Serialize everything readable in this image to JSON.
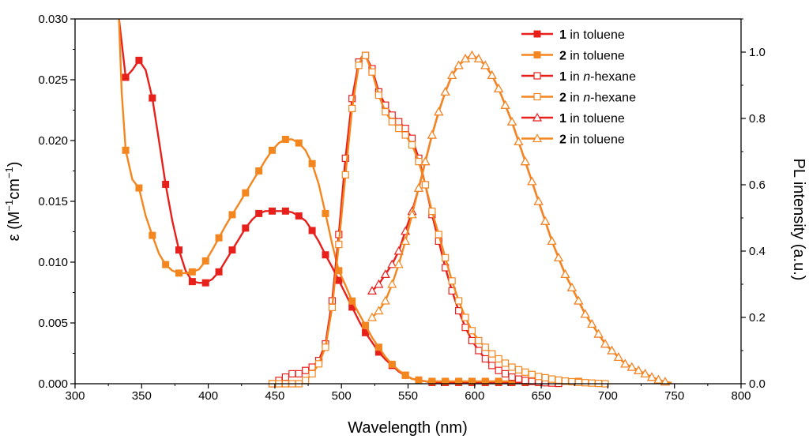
{
  "chart_data": {
    "type": "line",
    "title": "",
    "xlabel": "Wavelength (nm)",
    "ylabel_parts": [
      "ε (M",
      "−1",
      "cm",
      "−1",
      ")"
    ],
    "y2label": "PL intensity (a.u.)",
    "xlim": [
      300,
      800
    ],
    "ylim": [
      0,
      0.03
    ],
    "y2lim": [
      0,
      1.1
    ],
    "xticks": [
      "300",
      "350",
      "400",
      "450",
      "500",
      "550",
      "600",
      "650",
      "700",
      "750",
      "800"
    ],
    "yticks": [
      "0.000",
      "0.005",
      "0.010",
      "0.015",
      "0.020",
      "0.025",
      "0.030"
    ],
    "y2ticks": [
      "0.0",
      "0.2",
      "0.4",
      "0.6",
      "0.8",
      "1.0"
    ],
    "legend_position": "top-right",
    "series": [
      {
        "name": "1 in toluene",
        "label_num": "1",
        "label_pre": " in ",
        "label_solvent": "toluene",
        "solvent_italic": false,
        "axis": "left",
        "color": "#e8201c",
        "marker": "square-filled",
        "x": [
          333,
          338,
          343,
          348,
          353,
          358,
          363,
          368,
          373,
          378,
          383,
          388,
          393,
          398,
          403,
          408,
          413,
          418,
          423,
          428,
          433,
          438,
          443,
          448,
          453,
          458,
          463,
          468,
          473,
          478,
          483,
          488,
          493,
          498,
          503,
          508,
          513,
          518,
          523,
          528,
          533,
          538,
          543,
          548,
          553,
          558,
          563,
          568,
          573,
          578,
          583,
          588,
          593,
          598,
          603,
          608,
          613,
          618,
          623,
          628,
          633,
          638,
          643,
          648,
          653,
          658,
          663,
          668
        ],
        "y": [
          0.03,
          0.0252,
          0.0258,
          0.0266,
          0.0258,
          0.0235,
          0.02,
          0.0164,
          0.0134,
          0.011,
          0.0093,
          0.0084,
          0.0083,
          0.0083,
          0.0086,
          0.0092,
          0.0101,
          0.011,
          0.0119,
          0.0128,
          0.0135,
          0.014,
          0.0142,
          0.0142,
          0.0142,
          0.0142,
          0.0141,
          0.0138,
          0.0134,
          0.0126,
          0.0117,
          0.0106,
          0.0096,
          0.0085,
          0.0074,
          0.0063,
          0.0052,
          0.0042,
          0.0034,
          0.0026,
          0.002,
          0.0015,
          0.001,
          0.0007,
          0.0004,
          0.0003,
          0.0002,
          0.0001,
          0.0001,
          0.0001,
          0.0001,
          0.0001,
          0.0001,
          0.0001,
          0.0001,
          0.0001,
          0.0001,
          0.0001,
          0.0001,
          0.0001,
          0.0001,
          0.0001,
          0.0001,
          0.0001,
          0.0001,
          0.0001,
          0.0001,
          0.0001
        ],
        "marker_x": [
          338,
          348,
          358,
          368,
          378,
          388,
          398,
          408,
          418,
          428,
          438,
          448,
          458,
          468,
          478,
          488,
          498,
          508,
          518,
          528,
          538,
          548,
          558,
          568,
          578,
          588,
          598,
          608,
          618,
          628,
          638,
          648,
          658
        ]
      },
      {
        "name": "2 in toluene",
        "label_num": "2",
        "label_pre": " in ",
        "label_solvent": "toluene",
        "solvent_italic": false,
        "axis": "left",
        "color": "#f4861f",
        "marker": "square-filled",
        "x": [
          333,
          335,
          338,
          343,
          348,
          353,
          358,
          363,
          368,
          373,
          378,
          383,
          388,
          393,
          398,
          403,
          408,
          413,
          418,
          423,
          428,
          433,
          438,
          443,
          448,
          453,
          458,
          463,
          468,
          473,
          478,
          483,
          488,
          493,
          498,
          503,
          508,
          513,
          518,
          523,
          528,
          533,
          538,
          543,
          548,
          553,
          558,
          563,
          568,
          573,
          578,
          583,
          588,
          593,
          598,
          603,
          608,
          613,
          618,
          623,
          628,
          633,
          638,
          643,
          648,
          653,
          658,
          663,
          668,
          673,
          678
        ],
        "y": [
          0.03,
          0.024,
          0.0192,
          0.0168,
          0.0161,
          0.0138,
          0.0122,
          0.0107,
          0.0098,
          0.0093,
          0.0091,
          0.0091,
          0.0092,
          0.0094,
          0.0101,
          0.011,
          0.012,
          0.013,
          0.0139,
          0.0148,
          0.0157,
          0.0166,
          0.0175,
          0.0184,
          0.0192,
          0.0198,
          0.0201,
          0.0201,
          0.0198,
          0.0192,
          0.0181,
          0.0164,
          0.014,
          0.0115,
          0.0093,
          0.0081,
          0.0068,
          0.0058,
          0.0048,
          0.0038,
          0.003,
          0.0022,
          0.0016,
          0.0011,
          0.0007,
          0.0004,
          0.0003,
          0.0002,
          0.0002,
          0.0002,
          0.0002,
          0.0002,
          0.0002,
          0.0002,
          0.0002,
          0.0002,
          0.0002,
          0.0002,
          0.0002,
          0.0002,
          0.0002,
          0.0002,
          0.0002,
          0.0002,
          0.0002,
          0.0002,
          0.0002,
          0.0002,
          0.0002,
          0.0002,
          0.0002
        ],
        "marker_x": [
          338,
          348,
          358,
          368,
          378,
          388,
          398,
          408,
          418,
          428,
          438,
          448,
          458,
          468,
          478,
          488,
          498,
          508,
          518,
          528,
          538,
          548,
          558,
          568,
          578,
          588,
          598,
          608,
          618,
          628,
          638,
          648,
          658,
          668,
          678
        ]
      },
      {
        "name": "1 in n-hexane",
        "label_num": "1",
        "label_pre": " in ",
        "label_solvent": "n",
        "label_post": "-hexane",
        "solvent_italic": true,
        "axis": "right",
        "color": "#e8201c",
        "marker": "square-open",
        "x": [
          448,
          453,
          458,
          463,
          468,
          473,
          478,
          483,
          488,
          493,
          498,
          503,
          508,
          513,
          516,
          518,
          523,
          528,
          533,
          538,
          543,
          548,
          553,
          558,
          563,
          568,
          573,
          578,
          583,
          588,
          593,
          598,
          603,
          608,
          613,
          618,
          623,
          628,
          633,
          638,
          643,
          648,
          653,
          658,
          663
        ],
        "y": [
          0.0,
          0.01,
          0.02,
          0.03,
          0.03,
          0.04,
          0.05,
          0.07,
          0.12,
          0.25,
          0.45,
          0.68,
          0.86,
          0.97,
          0.99,
          0.99,
          0.95,
          0.88,
          0.84,
          0.81,
          0.79,
          0.77,
          0.74,
          0.68,
          0.6,
          0.51,
          0.43,
          0.35,
          0.28,
          0.22,
          0.17,
          0.13,
          0.1,
          0.075,
          0.055,
          0.04,
          0.03,
          0.02,
          0.014,
          0.01,
          0.007,
          0.005,
          0.003,
          0.002,
          0.001
        ],
        "marker_x": [
          448,
          453,
          458,
          463,
          468,
          473,
          478,
          483,
          488,
          493,
          498,
          503,
          508,
          513,
          518,
          523,
          528,
          533,
          538,
          543,
          548,
          553,
          558,
          563,
          568,
          573,
          578,
          583,
          588,
          593,
          598,
          603,
          608,
          613,
          618,
          623,
          628,
          633,
          638,
          643,
          648,
          653,
          658,
          663
        ]
      },
      {
        "name": "2 in n-hexane",
        "label_num": "2",
        "label_pre": " in ",
        "label_solvent": "n",
        "label_post": "-hexane",
        "solvent_italic": true,
        "axis": "right",
        "color": "#f4861f",
        "marker": "square-open",
        "x": [
          448,
          453,
          458,
          463,
          468,
          473,
          478,
          483,
          488,
          493,
          498,
          503,
          508,
          513,
          516,
          518,
          523,
          528,
          533,
          538,
          543,
          548,
          553,
          558,
          563,
          568,
          573,
          578,
          583,
          588,
          593,
          598,
          603,
          608,
          613,
          618,
          623,
          628,
          633,
          638,
          643,
          648,
          653,
          658,
          663,
          668,
          673,
          678,
          683,
          688,
          693,
          698
        ],
        "y": [
          0.0,
          0.0,
          0.0,
          0.0,
          0.0,
          0.01,
          0.03,
          0.06,
          0.11,
          0.23,
          0.42,
          0.63,
          0.83,
          0.96,
          0.99,
          0.99,
          0.94,
          0.87,
          0.82,
          0.79,
          0.77,
          0.75,
          0.72,
          0.67,
          0.6,
          0.52,
          0.45,
          0.38,
          0.31,
          0.25,
          0.2,
          0.16,
          0.13,
          0.11,
          0.09,
          0.075,
          0.062,
          0.05,
          0.042,
          0.035,
          0.028,
          0.022,
          0.018,
          0.014,
          0.011,
          0.008,
          0.006,
          0.004,
          0.003,
          0.002,
          0.001,
          0.0
        ],
        "marker_x": [
          448,
          453,
          458,
          463,
          468,
          473,
          478,
          483,
          488,
          493,
          498,
          503,
          508,
          513,
          518,
          523,
          528,
          533,
          538,
          543,
          548,
          553,
          558,
          563,
          568,
          573,
          578,
          583,
          588,
          593,
          598,
          603,
          608,
          613,
          618,
          623,
          628,
          633,
          638,
          643,
          648,
          653,
          658,
          663,
          668,
          673,
          678,
          683,
          688,
          693,
          698
        ]
      },
      {
        "name": "1 in toluene",
        "label_num": "1",
        "label_pre": " in ",
        "label_solvent": "toluene",
        "solvent_italic": false,
        "axis": "right",
        "color": "#e8201c",
        "marker": "triangle-open",
        "x": [
          523,
          528,
          533,
          538,
          543,
          548,
          553,
          558,
          563,
          568,
          573,
          578,
          583,
          588,
          593,
          598,
          603,
          608,
          613,
          618,
          623,
          628,
          633,
          638,
          643,
          648,
          653,
          658,
          663,
          668,
          673,
          678,
          683,
          688,
          693,
          698,
          703,
          708,
          713,
          718,
          723,
          728,
          733,
          738,
          743,
          748
        ],
        "y": [
          0.28,
          0.3,
          0.33,
          0.36,
          0.4,
          0.46,
          0.52,
          0.59,
          0.67,
          0.75,
          0.82,
          0.88,
          0.93,
          0.96,
          0.98,
          0.99,
          0.98,
          0.96,
          0.93,
          0.89,
          0.84,
          0.79,
          0.73,
          0.67,
          0.61,
          0.55,
          0.49,
          0.43,
          0.38,
          0.33,
          0.29,
          0.25,
          0.21,
          0.18,
          0.15,
          0.12,
          0.1,
          0.08,
          0.06,
          0.05,
          0.04,
          0.03,
          0.02,
          0.012,
          0.006,
          0.002
        ],
        "marker_x": [
          523,
          528,
          533,
          538,
          543,
          548,
          553,
          558,
          563,
          568,
          573,
          578,
          583,
          588,
          593,
          598,
          603,
          608,
          613,
          618,
          623,
          628,
          633,
          638,
          643,
          648,
          653,
          658,
          663,
          668,
          673,
          678,
          683,
          688,
          693,
          698,
          703,
          708,
          713,
          718,
          723,
          728,
          733,
          738,
          743
        ]
      },
      {
        "name": "2 in toluene",
        "label_num": "2",
        "label_pre": " in ",
        "label_solvent": "toluene",
        "solvent_italic": false,
        "axis": "right",
        "color": "#f4861f",
        "marker": "triangle-open",
        "x": [
          523,
          528,
          533,
          538,
          543,
          548,
          553,
          558,
          563,
          568,
          573,
          578,
          583,
          588,
          593,
          598,
          603,
          608,
          613,
          618,
          623,
          628,
          633,
          638,
          643,
          648,
          653,
          658,
          663,
          668,
          673,
          678,
          683,
          688,
          693,
          698,
          703,
          708,
          713,
          718,
          723,
          728,
          733,
          738,
          743,
          748
        ],
        "y": [
          0.2,
          0.22,
          0.25,
          0.3,
          0.36,
          0.43,
          0.51,
          0.59,
          0.67,
          0.75,
          0.82,
          0.88,
          0.93,
          0.96,
          0.98,
          0.99,
          0.98,
          0.96,
          0.93,
          0.89,
          0.84,
          0.79,
          0.73,
          0.67,
          0.61,
          0.55,
          0.49,
          0.43,
          0.38,
          0.33,
          0.29,
          0.25,
          0.21,
          0.18,
          0.15,
          0.12,
          0.1,
          0.08,
          0.06,
          0.05,
          0.04,
          0.03,
          0.02,
          0.012,
          0.006,
          0.002
        ],
        "marker_x": [
          523,
          528,
          533,
          538,
          543,
          548,
          553,
          558,
          563,
          568,
          573,
          578,
          583,
          588,
          593,
          598,
          603,
          608,
          613,
          618,
          623,
          628,
          633,
          638,
          643,
          648,
          653,
          658,
          663,
          668,
          673,
          678,
          683,
          688,
          693,
          698,
          703,
          708,
          713,
          718,
          723,
          728,
          733,
          738,
          743
        ]
      }
    ]
  }
}
